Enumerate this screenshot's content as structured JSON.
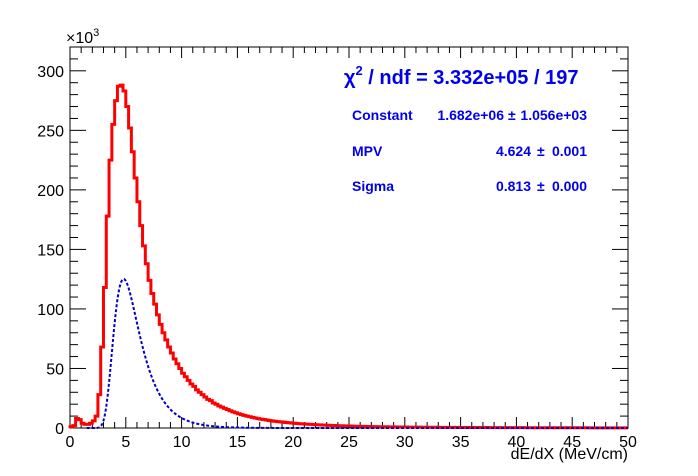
{
  "chart_data": {
    "type": "line",
    "title": "",
    "xlabel": "dE/dX (MeV/cm)",
    "ylabel": "",
    "y_multiplier_label": "×10",
    "y_multiplier_exp": "3",
    "xlim": [
      0,
      50
    ],
    "ylim": [
      0,
      320
    ],
    "x_ticks": [
      0,
      5,
      10,
      15,
      20,
      25,
      30,
      35,
      40,
      45,
      50
    ],
    "y_ticks": [
      0,
      50,
      100,
      150,
      200,
      250,
      300
    ],
    "grid": false,
    "series": [
      {
        "style": "histogram",
        "color": "#ff0000",
        "bin_width": 0.25,
        "x_edges_start": 0,
        "values": [
          1,
          2,
          8,
          7,
          4,
          3,
          3,
          4,
          6,
          10,
          28,
          68,
          118,
          178,
          225,
          255,
          275,
          287,
          288,
          283,
          270,
          252,
          232,
          210,
          190,
          170,
          153,
          138,
          124,
          113,
          104,
          95,
          87,
          80,
          74,
          68,
          63,
          58,
          54,
          50,
          46,
          43,
          40,
          37,
          35,
          32,
          30,
          28,
          26,
          24,
          23,
          21,
          20,
          18.5,
          17.5,
          16.5,
          15.5,
          14.5,
          13.5,
          12.8,
          12,
          11.2,
          10.6,
          10,
          9.4,
          8.9,
          8.4,
          7.9,
          7.5,
          7.1,
          6.7,
          6.3,
          6,
          5.7,
          5.4,
          5.1,
          4.9,
          4.6,
          4.4,
          4.2,
          4,
          3.8,
          3.6,
          3.45,
          3.3,
          3.15,
          3,
          2.85,
          2.7,
          2.6,
          2.5,
          2.4,
          2.3,
          2.2,
          2.1,
          2,
          1.9,
          1.85,
          1.8,
          1.7,
          1.65,
          1.6,
          1.5,
          1.45,
          1.4,
          1.35,
          1.3,
          1.25,
          1.2,
          1.15,
          1.1,
          1.06,
          1.03,
          1,
          0.97,
          0.94,
          0.91,
          0.88,
          0.85,
          0.82,
          0.79,
          0.77,
          0.75,
          0.73,
          0.71,
          0.69,
          0.67,
          0.65,
          0.63,
          0.61,
          0.6,
          0.58,
          0.56,
          0.55,
          0.53,
          0.52,
          0.5,
          0.49,
          0.48,
          0.47,
          0.46,
          0.45,
          0.44,
          0.43,
          0.42,
          0.41,
          0.4,
          0.39,
          0.38,
          0.37,
          0.36,
          0.35,
          0.34,
          0.33,
          0.32,
          0.31,
          0.3,
          0.3,
          0.29,
          0.29,
          0.28,
          0.28,
          0.27,
          0.27,
          0.26,
          0.26,
          0.25,
          0.25,
          0.24,
          0.24,
          0.23,
          0.23,
          0.22,
          0.22,
          0.21,
          0.21,
          0.2,
          0.2,
          0.19,
          0.19,
          0.18,
          0.18,
          0.17,
          0.17,
          0.16,
          0.16,
          0.15,
          0.15,
          0.14,
          0.14,
          0.13,
          0.13,
          0.12,
          0.12,
          0.11,
          0.11,
          0.1,
          0.1,
          0.1,
          0.1,
          0.1,
          0.1
        ]
      },
      {
        "style": "dashed-fit",
        "color": "#0000cc",
        "function": "landau",
        "constant": 1682000,
        "mpv": 4.624,
        "sigma": 0.813,
        "fit_range": [
          1.5,
          50
        ]
      }
    ],
    "stats_box": {
      "chi2_prefix": "χ",
      "chi2_exp": "2",
      "chi2_text": " / ndf = 3.332e+05 / 197",
      "rows": [
        {
          "label": "Constant",
          "value": "1.682e+06",
          "pm": "±",
          "error": "1.056e+03"
        },
        {
          "label": "MPV",
          "value": "4.624",
          "pm": "±",
          "error": "0.001"
        },
        {
          "label": "Sigma",
          "value": "0.813",
          "pm": "±",
          "error": "0.000"
        }
      ]
    }
  }
}
